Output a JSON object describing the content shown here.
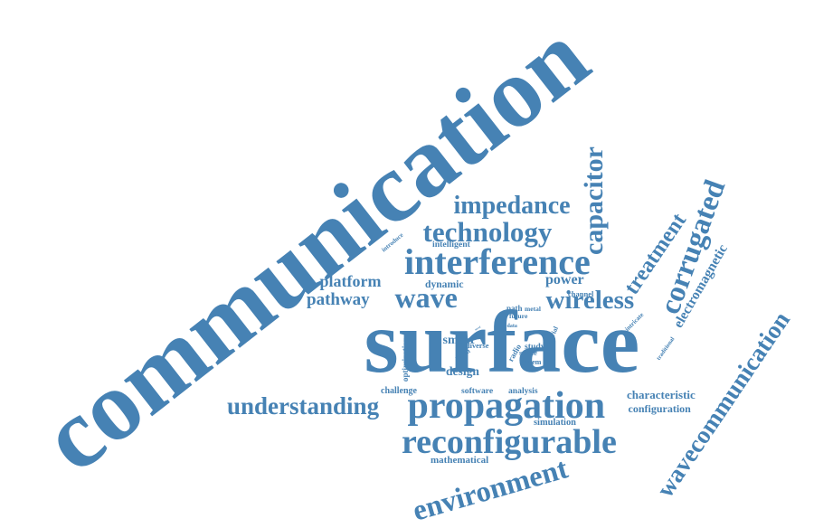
{
  "colors": {
    "word": "#4682b4",
    "background": "#ffffff"
  },
  "words": [
    "communication",
    "surface",
    "propagation",
    "reconfigurable",
    "interference",
    "wave",
    "environment",
    "impedance",
    "technology",
    "wavecommunication",
    "corrugated",
    "understanding",
    "wireless",
    "capacitor",
    "treatment",
    "platform",
    "pathway",
    "power",
    "electromagnetic",
    "characteristic",
    "configuration",
    "smart",
    "vision",
    "radio",
    "design",
    "optimization",
    "mathematical",
    "simulation",
    "dynamic",
    "intelligent",
    "introduce",
    "channel",
    "challenge",
    "software",
    "analysis",
    "traditional",
    "intricate",
    "study",
    "material",
    "diverse",
    "system",
    "space",
    "path",
    "metal",
    "future",
    "data",
    "novel"
  ]
}
